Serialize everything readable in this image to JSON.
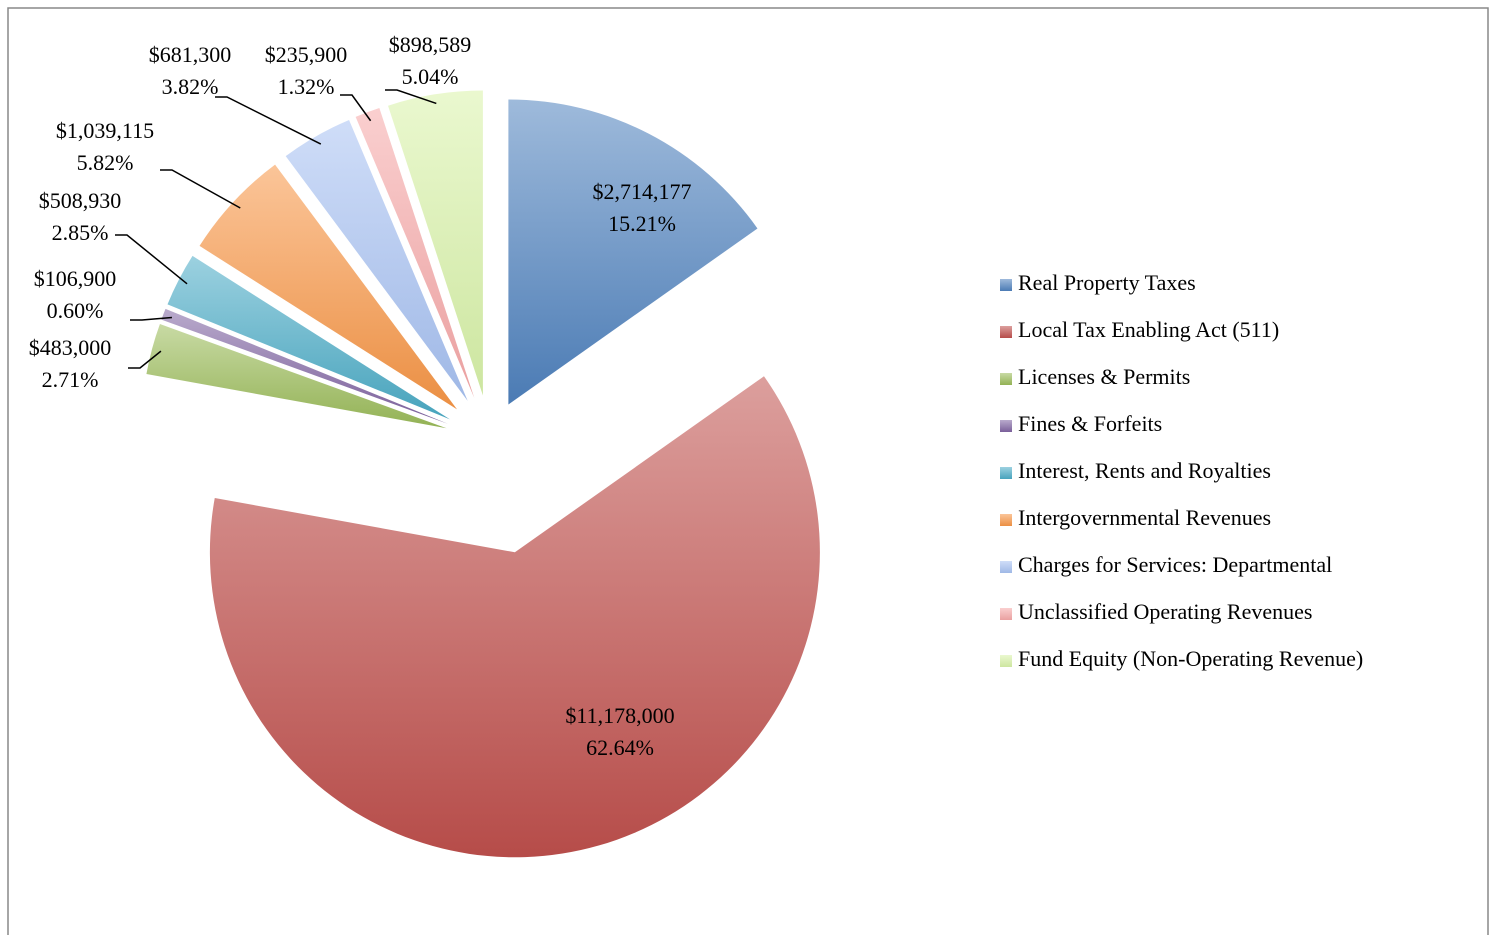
{
  "chart_data": {
    "type": "pie",
    "categories": [
      "Real Property Taxes",
      "Local Tax Enabling Act (511)",
      "Licenses & Permits",
      "Fines & Forfeits",
      "Interest, Rents and Royalties",
      "Intergovernmental Revenues",
      "Charges for Services: Departmental",
      "Unclassified Operating Revenues",
      "Fund Equity (Non-Operating Revenue)"
    ],
    "values": [
      2714177,
      11178000,
      483000,
      106900,
      508930,
      1039115,
      681300,
      235900,
      898589
    ],
    "value_labels": [
      "$2,714,177",
      "$11,178,000",
      "$483,000",
      "$106,900",
      "$508,930",
      "$1,039,115",
      "$681,300",
      "$235,900",
      "$898,589"
    ],
    "percent_labels": [
      "15.21%",
      "62.64%",
      "2.71%",
      "0.60%",
      "2.85%",
      "5.82%",
      "3.82%",
      "1.32%",
      "5.04%"
    ],
    "colors": [
      "#4f81bd",
      "#c0504d",
      "#9bbb59",
      "#8064a2",
      "#4bacc6",
      "#f79646",
      "#a7c2f2",
      "#f6a8a8",
      "#d8f2a8"
    ],
    "legend": "right"
  }
}
